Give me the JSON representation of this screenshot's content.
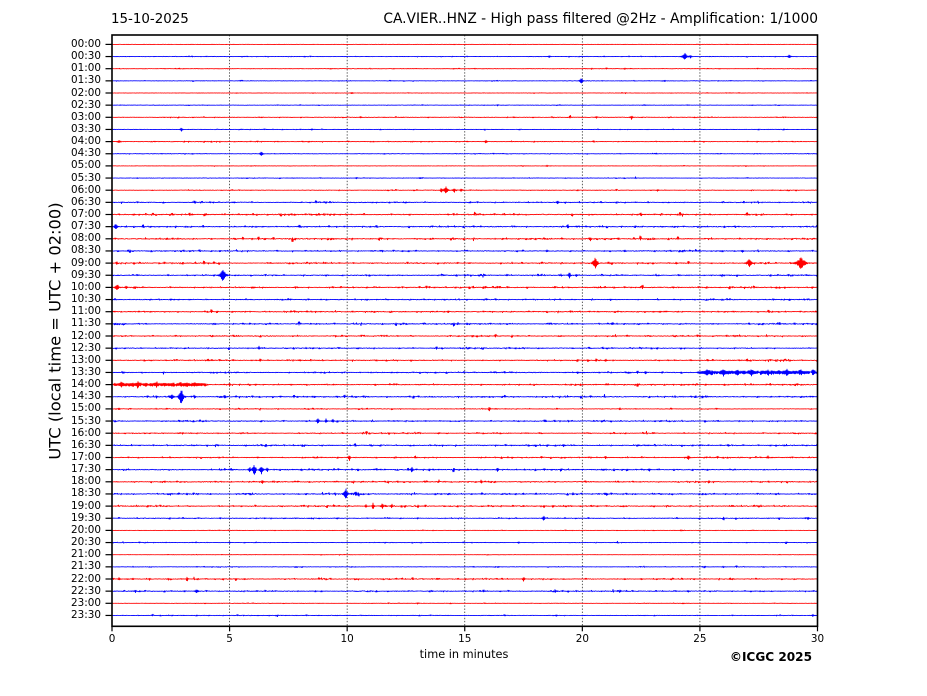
{
  "header": {
    "date": "15-10-2025",
    "title": "CA.VIER..HNZ - High pass filtered @2Hz - Amplification: 1/1000"
  },
  "axes": {
    "y_label": "UTC (local time = UTC + 02:00)",
    "x_label": "time in minutes",
    "x_ticks": [
      0,
      5,
      10,
      15,
      20,
      25,
      30
    ],
    "x_range": [
      0,
      30
    ],
    "grid_minutes": [
      5,
      10,
      15,
      20,
      25
    ]
  },
  "footer": {
    "copyright": "©ICGC 2025"
  },
  "colors": {
    "trace_red": "#ff0000",
    "trace_blue": "#0000ff",
    "frame": "#000000",
    "grid": "#333333",
    "text": "#000000",
    "background": "#ffffff"
  },
  "chart_data": {
    "type": "seismogram-dayplot",
    "title": "CA.VIER..HNZ - High pass filtered @2Hz - Amplification: 1/1000",
    "date": "15-10-2025",
    "xlabel": "time in minutes",
    "ylabel": "UTC (local time = UTC + 02:00)",
    "x_range_minutes": [
      0,
      30
    ],
    "minutes_per_row": 30,
    "row_colors_alternate": [
      "red",
      "blue"
    ],
    "rows": [
      {
        "label": "00:00",
        "color": "red",
        "noise": 0.28,
        "events": []
      },
      {
        "label": "00:30",
        "color": "blue",
        "noise": 0.42,
        "events": [
          [
            24.35,
            3.4,
            8
          ],
          [
            24.6,
            1.6,
            4
          ],
          [
            28.8,
            1.7,
            5
          ],
          [
            18.6,
            1.1,
            4
          ]
        ]
      },
      {
        "label": "01:00",
        "color": "red",
        "noise": 0.4,
        "events": [
          [
            20.4,
            0.9,
            3
          ],
          [
            21.8,
            0.8,
            3
          ]
        ]
      },
      {
        "label": "01:30",
        "color": "blue",
        "noise": 0.42,
        "events": [
          [
            19.95,
            2.7,
            6
          ],
          [
            23.5,
            0.8,
            3
          ]
        ]
      },
      {
        "label": "02:00",
        "color": "red",
        "noise": 0.34,
        "events": [
          [
            10.2,
            0.8,
            3
          ]
        ]
      },
      {
        "label": "02:30",
        "color": "blue",
        "noise": 0.38,
        "events": [
          [
            16.4,
            0.9,
            3
          ]
        ]
      },
      {
        "label": "03:00",
        "color": "red",
        "noise": 0.52,
        "events": [
          [
            22.1,
            2.1,
            5
          ],
          [
            20.6,
            1.0,
            4
          ]
        ]
      },
      {
        "label": "03:30",
        "color": "blue",
        "noise": 0.42,
        "events": [
          [
            2.95,
            1.7,
            4
          ],
          [
            8.5,
            0.9,
            3
          ]
        ]
      },
      {
        "label": "04:00",
        "color": "red",
        "noise": 0.55,
        "events": [
          [
            15.9,
            1.7,
            4
          ],
          [
            0.3,
            1.2,
            6
          ],
          [
            12.8,
            0.9,
            3
          ]
        ]
      },
      {
        "label": "04:30",
        "color": "blue",
        "noise": 0.45,
        "events": [
          [
            6.35,
            2.5,
            5
          ]
        ]
      },
      {
        "label": "05:00",
        "color": "red",
        "noise": 0.3,
        "events": [
          [
            18.5,
            0.8,
            3
          ]
        ]
      },
      {
        "label": "05:30",
        "color": "blue",
        "noise": 0.42,
        "events": [
          [
            10.4,
            0.9,
            3
          ],
          [
            13.1,
            0.9,
            3
          ]
        ]
      },
      {
        "label": "06:00",
        "color": "red",
        "noise": 0.55,
        "events": [
          [
            14.2,
            4.5,
            6
          ],
          [
            14.0,
            1.9,
            4
          ],
          [
            14.55,
            2.2,
            5
          ],
          [
            14.85,
            1.6,
            4
          ],
          [
            23.2,
            1.0,
            3
          ]
        ]
      },
      {
        "label": "06:30",
        "color": "blue",
        "noise": 0.75,
        "events": [
          [
            18.95,
            1.6,
            4
          ],
          [
            19.3,
            1.3,
            3
          ],
          [
            5.2,
            0.9,
            3
          ]
        ]
      },
      {
        "label": "07:00",
        "color": "red",
        "noise": 0.85,
        "events": [
          [
            22.5,
            1.0,
            3
          ],
          [
            9.0,
            0.9,
            3
          ]
        ]
      },
      {
        "label": "07:30",
        "color": "blue",
        "noise": 0.8,
        "events": [
          [
            0.15,
            2.8,
            5
          ],
          [
            26.5,
            1.0,
            3
          ]
        ]
      },
      {
        "label": "08:00",
        "color": "red",
        "noise": 0.85,
        "events": [
          [
            20.35,
            1.6,
            4
          ],
          [
            23.0,
            1.1,
            3
          ],
          [
            2.8,
            1.0,
            3
          ]
        ]
      },
      {
        "label": "08:30",
        "color": "blue",
        "noise": 0.8,
        "events": [
          [
            18.5,
            1.2,
            4
          ],
          [
            11.5,
            1.0,
            3
          ],
          [
            21.8,
            1.0,
            3
          ],
          [
            26.8,
            1.3,
            3
          ]
        ]
      },
      {
        "label": "09:00",
        "color": "red",
        "noise": 0.85,
        "events": [
          [
            20.55,
            5.2,
            9
          ],
          [
            27.1,
            5.0,
            8
          ],
          [
            29.3,
            5.6,
            16
          ],
          [
            0.2,
            1.5,
            4
          ],
          [
            24.0,
            1.2,
            3
          ]
        ]
      },
      {
        "label": "09:30",
        "color": "blue",
        "noise": 0.8,
        "events": [
          [
            4.72,
            6.4,
            9
          ],
          [
            19.45,
            2.1,
            5
          ],
          [
            19.75,
            1.7,
            4
          ],
          [
            19.1,
            1.2,
            3
          ],
          [
            16.8,
            1.0,
            3
          ]
        ]
      },
      {
        "label": "10:00",
        "color": "red",
        "noise": 0.85,
        "events": [
          [
            0.2,
            2.2,
            8
          ],
          [
            0.6,
            1.5,
            4
          ],
          [
            7.8,
            1.0,
            3
          ]
        ]
      },
      {
        "label": "10:30",
        "color": "blue",
        "noise": 0.7,
        "events": [
          [
            2.5,
            1.0,
            4
          ],
          [
            21.2,
            0.9,
            3
          ]
        ]
      },
      {
        "label": "11:00",
        "color": "red",
        "noise": 0.8,
        "events": [
          [
            14.3,
            1.0,
            3
          ],
          [
            23.3,
            1.1,
            3
          ]
        ]
      },
      {
        "label": "11:30",
        "color": "blue",
        "noise": 0.8,
        "events": [
          [
            14.7,
            1.4,
            4
          ],
          [
            15.1,
            1.1,
            3
          ],
          [
            21.3,
            1.2,
            3
          ],
          [
            4.4,
            1.0,
            3
          ]
        ]
      },
      {
        "label": "12:00",
        "color": "red",
        "noise": 0.8,
        "events": [
          [
            9.5,
            1.0,
            3
          ],
          [
            25.0,
            1.0,
            3
          ]
        ]
      },
      {
        "label": "12:30",
        "color": "blue",
        "noise": 0.7,
        "events": [
          [
            6.25,
            1.9,
            4
          ],
          [
            10.5,
            0.9,
            3
          ],
          [
            13.8,
            0.9,
            3
          ]
        ]
      },
      {
        "label": "13:00",
        "color": "red",
        "noise": 0.8,
        "events": [
          [
            20.6,
            1.5,
            5
          ],
          [
            21.0,
            1.2,
            4
          ],
          [
            8.0,
            1.0,
            3
          ],
          [
            6.3,
            1.0,
            3
          ]
        ]
      },
      {
        "label": "13:30",
        "color": "blue",
        "noise": 0.8,
        "events": [
          [
            19.8,
            1.2,
            3
          ],
          [
            0.5,
            1.0,
            3
          ],
          [
            22.7,
            1.2,
            4
          ],
          [
            23.4,
            1.1,
            3
          ],
          [
            25.3,
            1.9,
            5
          ],
          [
            26.0,
            2.1,
            5
          ],
          [
            26.6,
            1.8,
            4
          ],
          [
            27.2,
            2.2,
            5
          ],
          [
            27.9,
            1.9,
            4
          ],
          [
            28.7,
            2.1,
            5
          ],
          [
            29.3,
            2.0,
            4
          ],
          [
            29.8,
            2.0,
            4
          ]
        ],
        "dense": [
          [
            24.8,
            30,
            1.5
          ]
        ]
      },
      {
        "label": "14:00",
        "color": "red",
        "noise": 0.85,
        "events": [
          [
            19.5,
            1.0,
            3
          ],
          [
            7.6,
            0.9,
            3
          ],
          [
            0.4,
            1.8,
            4
          ],
          [
            1.1,
            1.6,
            4
          ],
          [
            1.9,
            1.7,
            4
          ],
          [
            2.6,
            1.6,
            4
          ],
          [
            3.2,
            1.5,
            4
          ],
          [
            5.0,
            1.2,
            4
          ],
          [
            6.1,
            1.1,
            3
          ]
        ],
        "dense": [
          [
            0,
            4.0,
            1.4
          ]
        ]
      },
      {
        "label": "14:30",
        "color": "blue",
        "noise": 0.85,
        "events": [
          [
            2.95,
            8.2,
            7
          ],
          [
            2.55,
            2.4,
            6
          ],
          [
            3.5,
            2.0,
            5
          ],
          [
            1.9,
            1.3,
            4
          ],
          [
            4.8,
            1.7,
            4
          ],
          [
            24.8,
            1.3,
            4
          ],
          [
            25.3,
            1.1,
            3
          ]
        ]
      },
      {
        "label": "15:00",
        "color": "red",
        "noise": 0.55,
        "events": [
          [
            16.05,
            1.5,
            4
          ],
          [
            16.35,
            1.2,
            3
          ],
          [
            21.6,
            1.0,
            3
          ],
          [
            0.3,
            1.2,
            4
          ]
        ]
      },
      {
        "label": "15:30",
        "color": "blue",
        "noise": 0.75,
        "events": [
          [
            8.75,
            2.4,
            5
          ],
          [
            9.1,
            2.1,
            4
          ],
          [
            9.4,
            1.6,
            4
          ],
          [
            19.4,
            1.0,
            3
          ]
        ]
      },
      {
        "label": "16:00",
        "color": "red",
        "noise": 0.7,
        "events": [
          [
            13.9,
            1.1,
            3
          ],
          [
            3.0,
            0.9,
            3
          ]
        ]
      },
      {
        "label": "16:30",
        "color": "blue",
        "noise": 0.8,
        "events": [
          [
            19.2,
            1.3,
            4
          ],
          [
            4.5,
            1.0,
            3
          ],
          [
            26.2,
            1.2,
            3
          ]
        ]
      },
      {
        "label": "17:00",
        "color": "red",
        "noise": 0.8,
        "events": [
          [
            24.5,
            2.5,
            5
          ],
          [
            21.0,
            1.4,
            4
          ],
          [
            27.9,
            1.6,
            4
          ],
          [
            6.2,
            1.0,
            3
          ],
          [
            10.1,
            2.8,
            4
          ]
        ]
      },
      {
        "label": "17:30",
        "color": "blue",
        "noise": 0.85,
        "events": [
          [
            6.05,
            4.8,
            7
          ],
          [
            6.35,
            4.0,
            6
          ],
          [
            5.85,
            2.4,
            5
          ],
          [
            6.6,
            2.0,
            4
          ],
          [
            12.75,
            2.4,
            5
          ],
          [
            13.5,
            1.2,
            4
          ],
          [
            16.4,
            1.6,
            4
          ],
          [
            22.85,
            1.6,
            4
          ],
          [
            9.2,
            1.0,
            3
          ]
        ]
      },
      {
        "label": "18:00",
        "color": "red",
        "noise": 0.85,
        "events": [
          [
            6.4,
            1.8,
            4
          ],
          [
            25.4,
            1.2,
            3
          ],
          [
            13.9,
            1.6,
            4
          ],
          [
            15.7,
            1.5,
            4
          ]
        ]
      },
      {
        "label": "18:30",
        "color": "blue",
        "noise": 0.85,
        "events": [
          [
            9.94,
            4.6,
            7
          ],
          [
            10.35,
            3.2,
            6
          ],
          [
            9.5,
            1.3,
            4
          ],
          [
            2.5,
            1.3,
            5
          ],
          [
            3.2,
            1.2,
            4
          ],
          [
            19.6,
            1.1,
            3
          ],
          [
            21.0,
            1.0,
            3
          ]
        ]
      },
      {
        "label": "19:00",
        "color": "red",
        "noise": 0.85,
        "events": [
          [
            11.1,
            2.5,
            5
          ],
          [
            11.5,
            2.3,
            5
          ],
          [
            11.9,
            2.0,
            4
          ],
          [
            10.8,
            1.5,
            4
          ],
          [
            17.5,
            1.0,
            3
          ]
        ]
      },
      {
        "label": "19:30",
        "color": "blue",
        "noise": 0.6,
        "events": [
          [
            18.35,
            2.1,
            5
          ],
          [
            29.6,
            1.4,
            4
          ],
          [
            4.6,
            0.9,
            3
          ],
          [
            6.5,
            0.9,
            3
          ],
          [
            13.0,
            0.9,
            3
          ]
        ]
      },
      {
        "label": "20:00",
        "color": "red",
        "noise": 0.35,
        "events": [
          [
            24.2,
            0.8,
            3
          ]
        ]
      },
      {
        "label": "20:30",
        "color": "blue",
        "noise": 0.45,
        "events": [
          [
            5.0,
            0.8,
            3
          ],
          [
            17.3,
            0.9,
            3
          ]
        ]
      },
      {
        "label": "21:00",
        "color": "red",
        "noise": 0.3,
        "events": []
      },
      {
        "label": "21:30",
        "color": "blue",
        "noise": 0.45,
        "events": [
          [
            26.0,
            0.8,
            3
          ]
        ]
      },
      {
        "label": "22:00",
        "color": "red",
        "noise": 0.8,
        "events": [
          [
            3.2,
            1.4,
            4
          ],
          [
            17.5,
            2.0,
            4
          ],
          [
            21.8,
            1.1,
            3
          ],
          [
            22.5,
            1.0,
            3
          ],
          [
            26.4,
            1.2,
            3
          ],
          [
            0.3,
            1.3,
            4
          ],
          [
            0.9,
            1.2,
            4
          ],
          [
            1.6,
            1.1,
            3
          ],
          [
            2.4,
            1.2,
            3
          ]
        ]
      },
      {
        "label": "22:30",
        "color": "blue",
        "noise": 0.8,
        "events": [
          [
            3.6,
            2.2,
            5
          ],
          [
            18.85,
            1.8,
            4
          ],
          [
            21.6,
            1.6,
            4
          ],
          [
            24.5,
            1.3,
            4
          ],
          [
            1.0,
            1.1,
            3
          ]
        ]
      },
      {
        "label": "23:00",
        "color": "red",
        "noise": 0.32,
        "events": [
          [
            13.0,
            0.8,
            3
          ]
        ]
      },
      {
        "label": "23:30",
        "color": "blue",
        "noise": 0.5,
        "events": [
          [
            29.8,
            1.1,
            4
          ],
          [
            18.9,
            0.9,
            3
          ]
        ]
      }
    ]
  }
}
